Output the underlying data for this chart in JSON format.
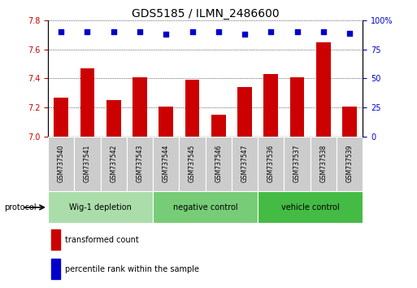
{
  "title": "GDS5185 / ILMN_2486600",
  "samples": [
    "GSM737540",
    "GSM737541",
    "GSM737542",
    "GSM737543",
    "GSM737544",
    "GSM737545",
    "GSM737546",
    "GSM737547",
    "GSM737536",
    "GSM737537",
    "GSM737538",
    "GSM737539"
  ],
  "bar_values": [
    7.27,
    7.47,
    7.25,
    7.41,
    7.21,
    7.39,
    7.15,
    7.34,
    7.43,
    7.41,
    7.65,
    7.21
  ],
  "percentile_values": [
    90,
    90,
    90,
    90,
    88,
    90,
    90,
    88,
    90,
    90,
    90,
    89
  ],
  "ylim_left": [
    7.0,
    7.8
  ],
  "ylim_right": [
    0,
    100
  ],
  "yticks_left": [
    7.0,
    7.2,
    7.4,
    7.6,
    7.8
  ],
  "yticks_right": [
    0,
    25,
    50,
    75,
    100
  ],
  "bar_color": "#cc0000",
  "dot_color": "#0000cc",
  "groups": [
    {
      "label": "Wig-1 depletion",
      "start": 0,
      "end": 4,
      "color": "#aaddaa"
    },
    {
      "label": "negative control",
      "start": 4,
      "end": 8,
      "color": "#77cc77"
    },
    {
      "label": "vehicle control",
      "start": 8,
      "end": 12,
      "color": "#44bb44"
    }
  ],
  "protocol_label": "protocol",
  "legend_items": [
    {
      "color": "#cc0000",
      "label": "transformed count"
    },
    {
      "color": "#0000cc",
      "label": "percentile rank within the sample"
    }
  ],
  "background_color": "#ffffff",
  "sample_box_color": "#cccccc",
  "title_fontsize": 10,
  "tick_fontsize": 7,
  "sample_fontsize": 5.5,
  "group_fontsize": 7,
  "legend_fontsize": 7
}
